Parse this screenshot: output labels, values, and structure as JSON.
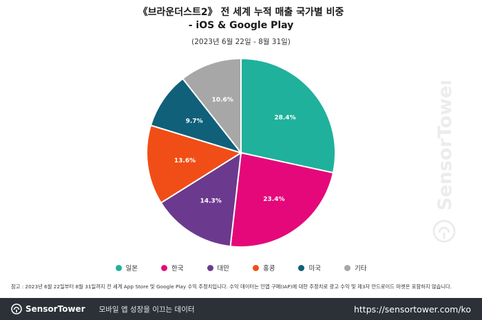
{
  "chart_data": {
    "type": "pie",
    "title": "《브라운더스트2》 전 세계 누적 매출 국가별 비중",
    "title_line2": "- iOS & Google Play",
    "subtitle": "(2023년 6월 22일 - 8월 31일)",
    "slices": [
      {
        "label": "일본",
        "value": 28.4,
        "display": "28.4%",
        "color": "#1fb19c"
      },
      {
        "label": "한국",
        "value": 23.4,
        "display": "23.4%",
        "color": "#e5087a"
      },
      {
        "label": "대만",
        "value": 14.3,
        "display": "14.3%",
        "color": "#6b3a8e"
      },
      {
        "label": "홍콩",
        "value": 13.6,
        "display": "13.6%",
        "color": "#f04e16"
      },
      {
        "label": "미국",
        "value": 9.7,
        "display": "9.7%",
        "color": "#10607a"
      },
      {
        "label": "기타",
        "value": 10.6,
        "display": "10.6%",
        "color": "#a7a7a7"
      }
    ],
    "legend_position": "bottom"
  },
  "note": "참고 : 2023년 6월 22일부터 8월 31일까지 전 세계 App Store 및 Google Play 수익 추정치입니다. 수익 데이터는 인앱 구매(IAP)에 대한 추정치로 광고 수익 및 제3자 안드로이드 마켓은 포함하지 않습니다.",
  "watermark": "SensorTower",
  "footer": {
    "brand": "SensorTower",
    "tagline": "모바일 앱 성장을 이끄는 데이터",
    "url": "https://sensortower.com/ko"
  }
}
